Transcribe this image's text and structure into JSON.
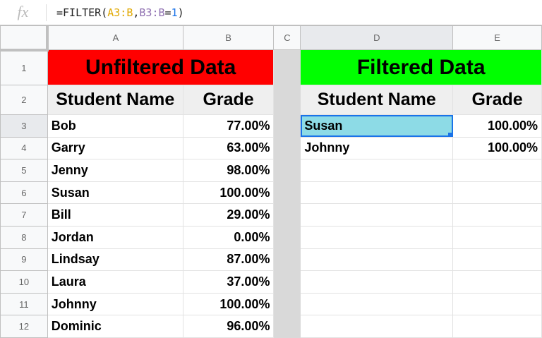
{
  "formula_bar": {
    "fx_label": "fx",
    "formula_prefix": "=FILTER(",
    "range1": "A3:B",
    ",": ",",
    "range2": "B3:B",
    "eq": "=",
    "value": "1",
    "suffix": ")"
  },
  "columns": [
    "A",
    "B",
    "C",
    "D",
    "E"
  ],
  "rows": [
    "1",
    "2",
    "3",
    "4",
    "5",
    "6",
    "7",
    "8",
    "9",
    "10",
    "11",
    "12"
  ],
  "unfiltered": {
    "title": "Unfiltered Data",
    "header_name": "Student Name",
    "header_grade": "Grade",
    "data": [
      [
        "Bob",
        "77.00%"
      ],
      [
        "Garry",
        "63.00%"
      ],
      [
        "Jenny",
        "98.00%"
      ],
      [
        "Susan",
        "100.00%"
      ],
      [
        "Bill",
        "29.00%"
      ],
      [
        "Jordan",
        "0.00%"
      ],
      [
        "Lindsay",
        "87.00%"
      ],
      [
        "Laura",
        "37.00%"
      ],
      [
        "Johnny",
        "100.00%"
      ],
      [
        "Dominic",
        "96.00%"
      ]
    ]
  },
  "filtered": {
    "title": "Filtered Data",
    "header_name": "Student Name",
    "header_grade": "Grade",
    "data": [
      [
        "Susan",
        "100.00%"
      ],
      [
        "Johnny",
        "100.00%"
      ],
      [
        "",
        ""
      ],
      [
        "",
        ""
      ],
      [
        "",
        ""
      ],
      [
        "",
        ""
      ],
      [
        "",
        ""
      ],
      [
        "",
        ""
      ],
      [
        "",
        ""
      ],
      [
        "",
        ""
      ]
    ]
  },
  "colors": {
    "unfiltered_title_bg": "#ff0000",
    "filtered_title_bg": "#00ff00",
    "selected_cell_bg": "#8ddbe6",
    "selection_border": "#1a73e8"
  }
}
